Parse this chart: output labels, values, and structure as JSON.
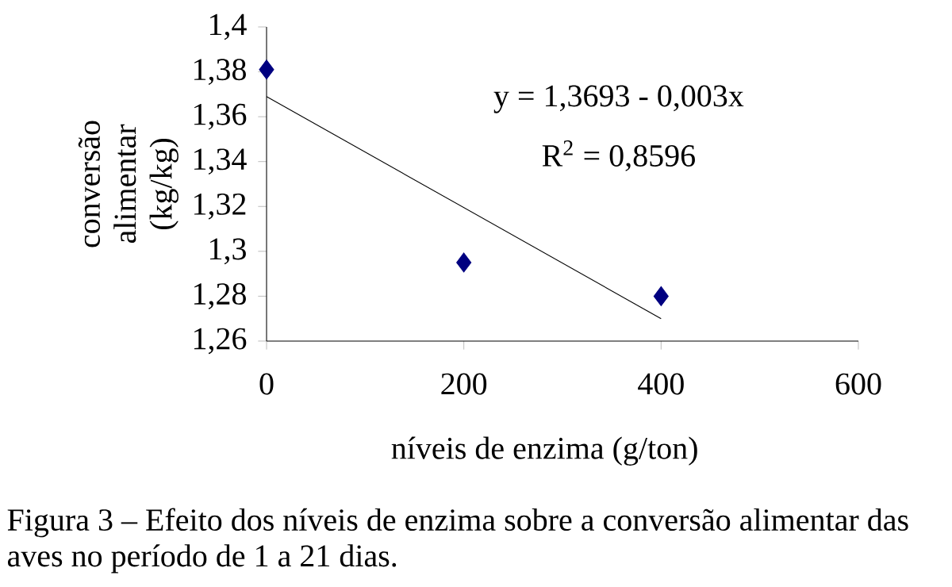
{
  "chart_data": {
    "type": "scatter",
    "xlabel": "níveis de enzima (g/ton)",
    "ylabel": "conversão alimentar (kg/kg)",
    "xlim": [
      0,
      600
    ],
    "xticks": [
      0,
      200,
      400,
      600
    ],
    "ylim": [
      1.26,
      1.4
    ],
    "yticks": [
      {
        "value": 1.26,
        "label": "1,26"
      },
      {
        "value": 1.28,
        "label": "1,28"
      },
      {
        "value": 1.3,
        "label": "1,3"
      },
      {
        "value": 1.32,
        "label": "1,32"
      },
      {
        "value": 1.34,
        "label": "1,34"
      },
      {
        "value": 1.36,
        "label": "1,36"
      },
      {
        "value": 1.38,
        "label": "1,38"
      },
      {
        "value": 1.4,
        "label": "1,4"
      }
    ],
    "series": [
      {
        "x": [
          0,
          200,
          400
        ],
        "values": [
          1.381,
          1.295,
          1.28
        ],
        "color": "#000080",
        "marker": "diamond"
      },
      {
        "type": "line",
        "x": [
          0,
          400
        ],
        "values": [
          1.369,
          1.27
        ],
        "color": "#000000",
        "line_style": "solid",
        "marker": "none"
      }
    ],
    "annotations": [
      "y = 1,3693 - 0,003x",
      "R$^{2}$ = 0,8596",
      "Figura 3 – Efeito dos níveis de enzima sobre a conversão alimentar das aves no período de 1 a 21 dias."
    ],
    "grid": false
  }
}
